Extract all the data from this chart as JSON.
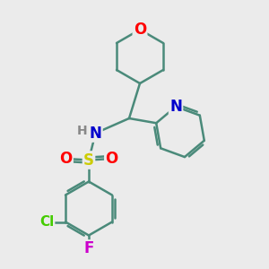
{
  "bg_color": "#ebebeb",
  "bond_color": "#4a8a7a",
  "bond_width": 1.8,
  "atom_colors": {
    "O": "#ff0000",
    "N": "#0000cc",
    "S": "#cccc00",
    "Cl": "#44cc00",
    "F": "#cc00cc",
    "H": "#888888",
    "C": "#4a8a7a"
  },
  "font_size": 11
}
